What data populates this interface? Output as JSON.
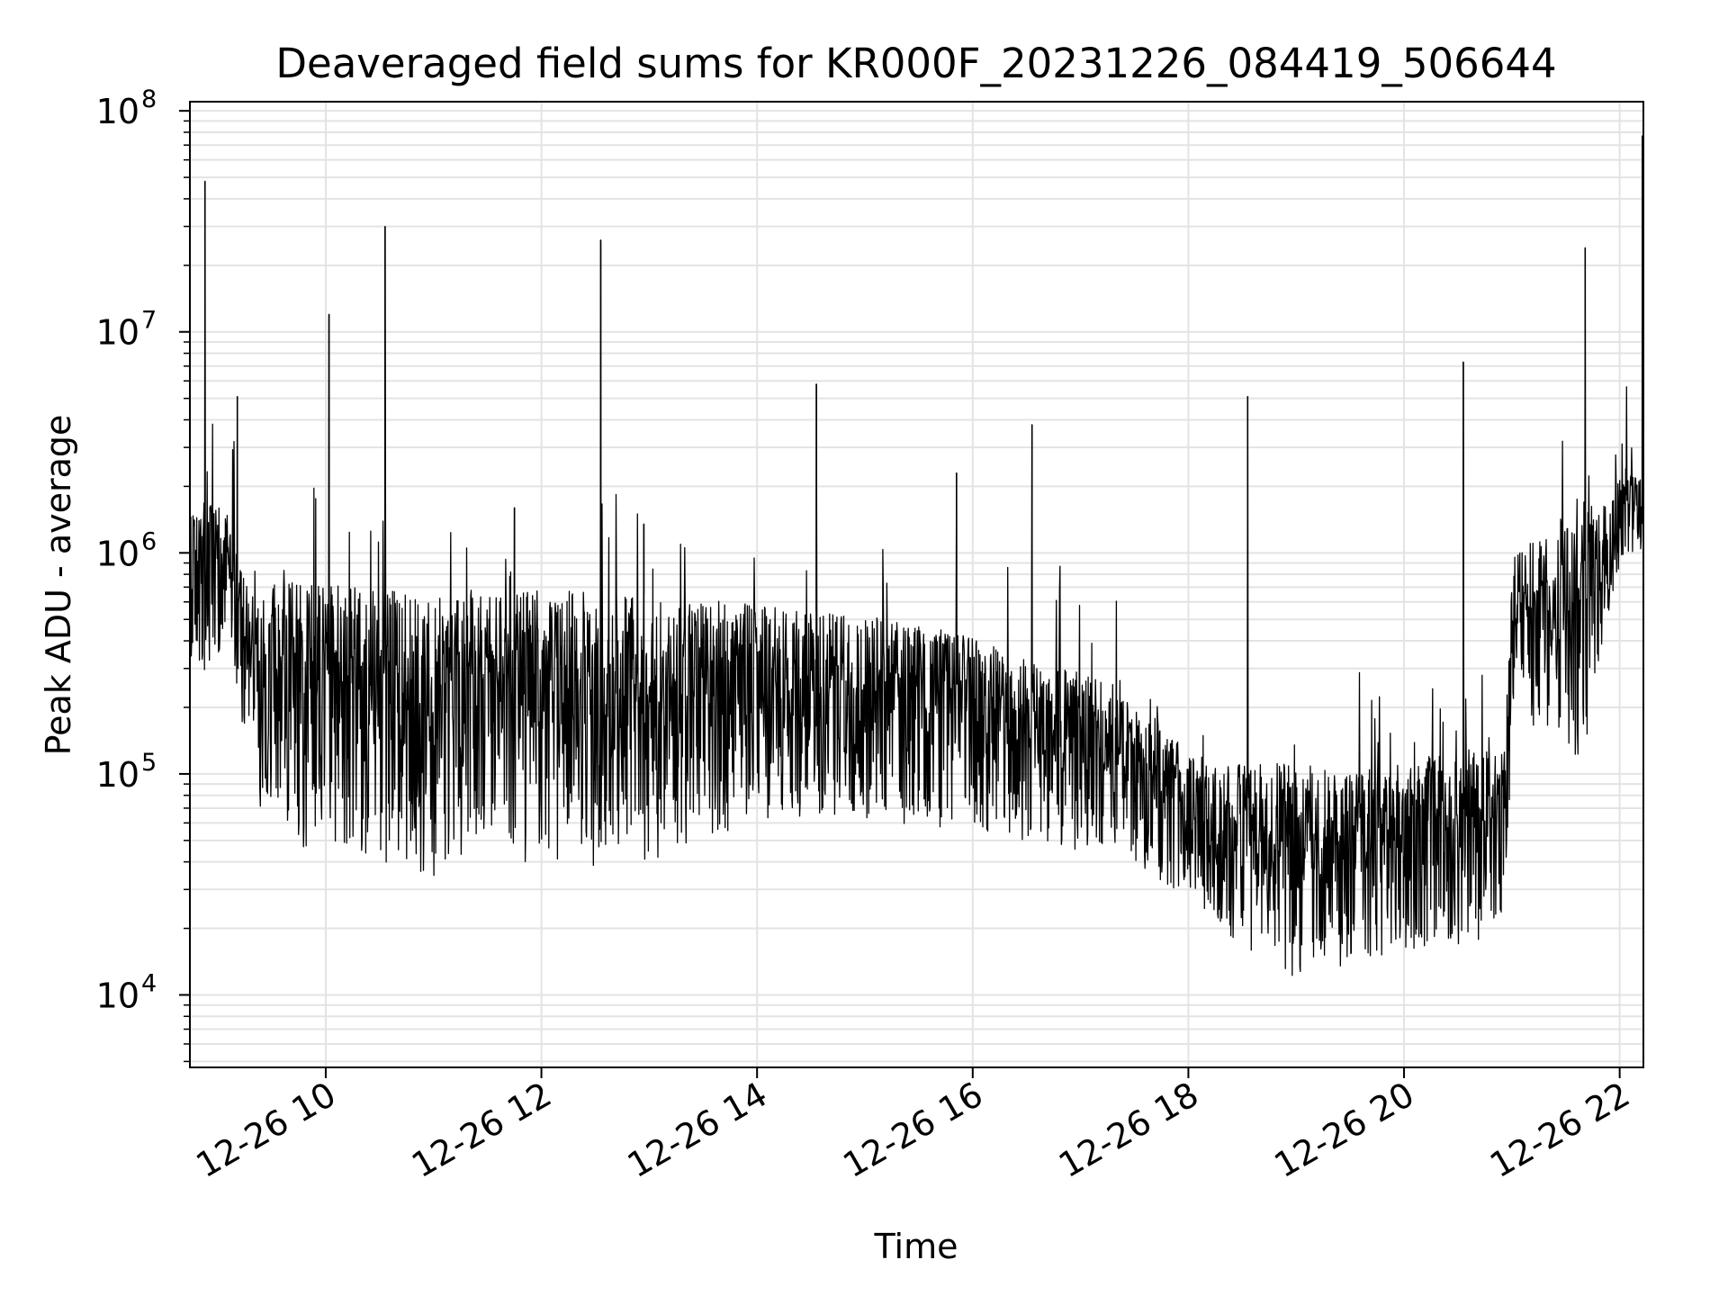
{
  "chart_data": {
    "type": "line",
    "title": "Deaveraged field sums for KR000F_20231226_084419_506644",
    "xlabel": "Time",
    "ylabel": "Peak ADU - average",
    "yscale": "log",
    "ylim": [
      4700,
      110000000
    ],
    "xlim_hours": [
      8.74,
      22.22
    ],
    "grid": true,
    "line_color": "#000000",
    "grid_color": "#e3e3e3",
    "x_ticks": [
      {
        "hour": 10,
        "label": "12-26 10"
      },
      {
        "hour": 12,
        "label": "12-26 12"
      },
      {
        "hour": 14,
        "label": "12-26 14"
      },
      {
        "hour": 16,
        "label": "12-26 16"
      },
      {
        "hour": 18,
        "label": "12-26 18"
      },
      {
        "hour": 20,
        "label": "12-26 20"
      },
      {
        "hour": 22,
        "label": "12-26 22"
      }
    ],
    "y_ticks": [
      {
        "value": 10000,
        "base": "10",
        "exp": "4"
      },
      {
        "value": 100000,
        "base": "10",
        "exp": "5"
      },
      {
        "value": 1000000,
        "base": "10",
        "exp": "6"
      },
      {
        "value": 10000000,
        "base": "10",
        "exp": "7"
      },
      {
        "value": 100000000,
        "base": "10",
        "exp": "8"
      }
    ],
    "envelope": {
      "hours": [
        8.74,
        8.9,
        9.1,
        9.28,
        9.5,
        10.0,
        10.5,
        11.0,
        11.3,
        11.7,
        12.0,
        12.5,
        13.0,
        13.5,
        13.8,
        14.0,
        14.5,
        15.0,
        15.5,
        16.0,
        16.5,
        17.0,
        17.3,
        17.6,
        18.0,
        18.4,
        18.8,
        19.1,
        19.4,
        19.8,
        20.2,
        20.6,
        20.95,
        21.0,
        21.3,
        21.7,
        21.85,
        22.0,
        22.22
      ],
      "upper": [
        1500000,
        1800000,
        1500000,
        700000,
        760000,
        720000,
        690000,
        640000,
        650000,
        650000,
        700000,
        680000,
        640000,
        620000,
        600000,
        600000,
        550000,
        520000,
        470000,
        420000,
        330000,
        300000,
        240000,
        180000,
        130000,
        110000,
        120000,
        110000,
        100000,
        110000,
        120000,
        130000,
        130000,
        1000000,
        1300000,
        1700000,
        1800000,
        2200000,
        2300000
      ],
      "lower": [
        250000,
        300000,
        400000,
        80000,
        42000,
        50000,
        40000,
        33000,
        40000,
        38000,
        37000,
        38000,
        40000,
        50000,
        55000,
        60000,
        65000,
        60000,
        58000,
        55000,
        50000,
        45000,
        42000,
        35000,
        25000,
        18000,
        13000,
        10000,
        13000,
        15000,
        15000,
        17000,
        19000,
        180000,
        150000,
        110000,
        400000,
        900000,
        1000000
      ]
    },
    "spikes": [
      {
        "hour": 8.88,
        "value": 48000000
      },
      {
        "hour": 9.18,
        "value": 5100000
      },
      {
        "hour": 10.03,
        "value": 12000000
      },
      {
        "hour": 10.55,
        "value": 30000000
      },
      {
        "hour": 11.75,
        "value": 1600000
      },
      {
        "hour": 12.55,
        "value": 26000000
      },
      {
        "hour": 12.95,
        "value": 1350000
      },
      {
        "hour": 14.55,
        "value": 5800000
      },
      {
        "hour": 15.85,
        "value": 2300000
      },
      {
        "hour": 16.55,
        "value": 3800000
      },
      {
        "hour": 18.55,
        "value": 5100000
      },
      {
        "hour": 20.55,
        "value": 7300000
      },
      {
        "hour": 21.68,
        "value": 24000000
      },
      {
        "hour": 22.21,
        "value": 77000000
      }
    ]
  }
}
